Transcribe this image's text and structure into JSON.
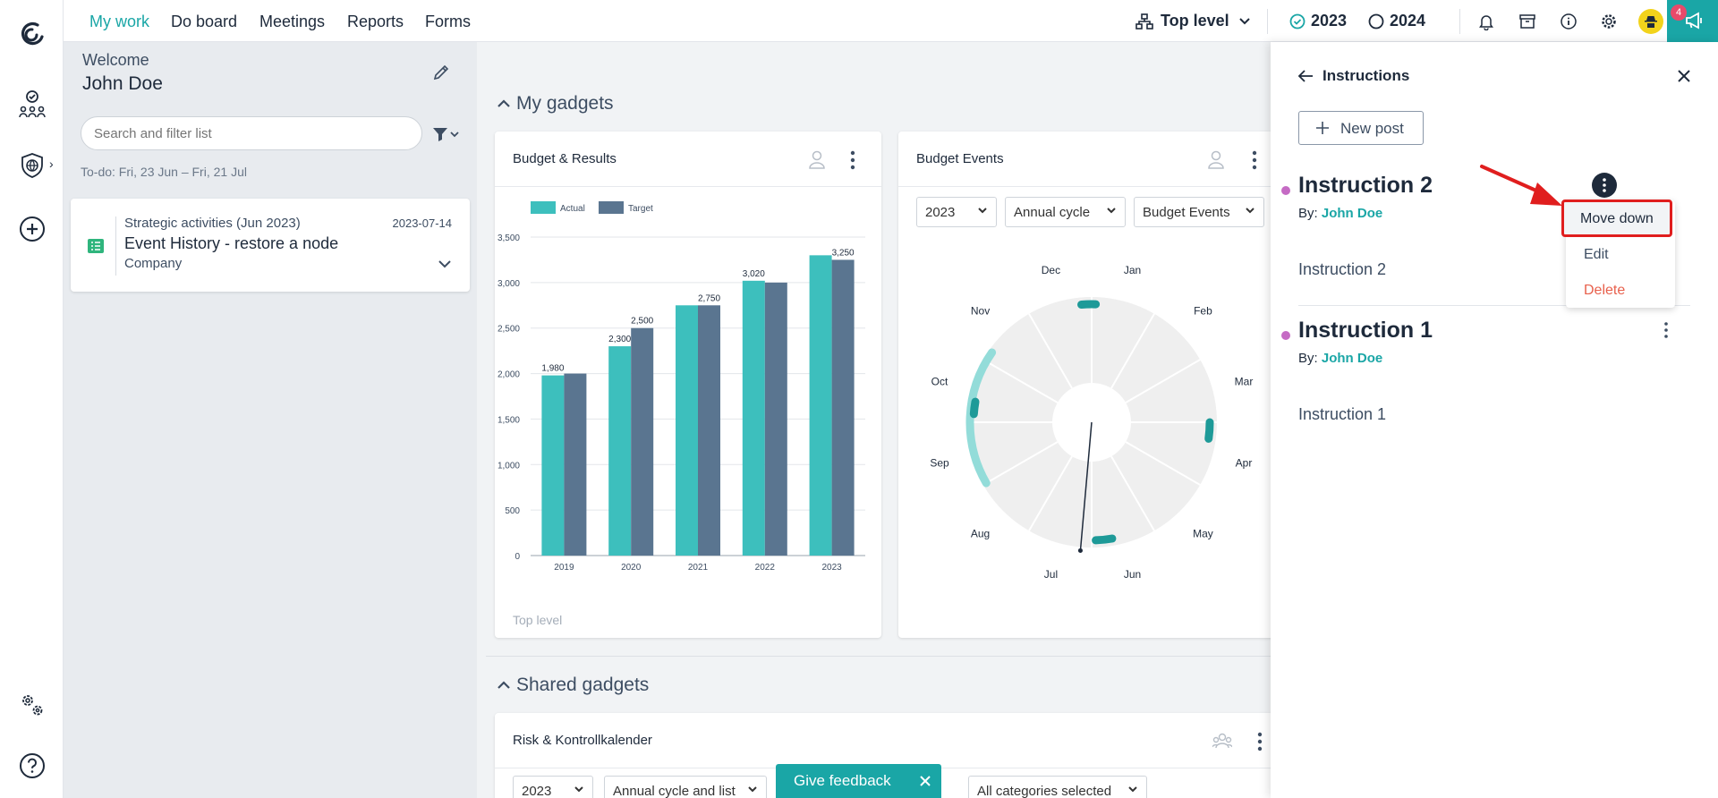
{
  "nav": {
    "items": [
      "My work",
      "Do board",
      "Meetings",
      "Reports",
      "Forms"
    ]
  },
  "topbar": {
    "level": "Top level",
    "year1": "2023",
    "year2": "2024",
    "notif_count": "4"
  },
  "left": {
    "welcome": "Welcome",
    "user_name": "John Doe",
    "search_placeholder": "Search and filter list",
    "todo_range": "To-do: Fri, 23 Jun – Fri, 21 Jul",
    "task": {
      "category": "Strategic activities (Jun 2023)",
      "date": "2023-07-14",
      "title": "Event History - restore a node",
      "org": "Company"
    }
  },
  "gadgets": {
    "my_title": "My gadgets",
    "shared_title": "Shared gadgets"
  },
  "budget_results": {
    "title": "Budget & Results",
    "footer": "Top level"
  },
  "budget_events": {
    "title": "Budget Events",
    "filters": [
      "2023",
      "Annual cycle",
      "Budget Events"
    ],
    "months": [
      "Jan",
      "Feb",
      "Mar",
      "Apr",
      "May",
      "Jun",
      "Jul",
      "Aug",
      "Sep",
      "Oct",
      "Nov",
      "Dec"
    ]
  },
  "risk": {
    "title": "Risk & Kontrollkalender",
    "filters": [
      "2023",
      "Annual cycle and list",
      "All categories selected"
    ]
  },
  "feedback": {
    "label": "Give feedback"
  },
  "panel": {
    "title": "Instructions",
    "new_post": "New post",
    "by_label": "By:",
    "posts": [
      {
        "title": "Instruction 2",
        "author": "John Doe",
        "body": "Instruction 2"
      },
      {
        "title": "Instruction 1",
        "author": "John Doe",
        "body": "Instruction 1"
      }
    ],
    "menu": {
      "move_down": "Move down",
      "edit": "Edit",
      "delete": "Delete"
    }
  },
  "colors": {
    "accent": "#1aa6a6",
    "actual": "#3dbfbd",
    "target": "#5a7590",
    "delete": "#e8604c",
    "highlight": "#e01e1e"
  },
  "chart_data": {
    "type": "bar",
    "categories": [
      "2019",
      "2020",
      "2021",
      "2022",
      "2023"
    ],
    "series": [
      {
        "name": "Actual",
        "values": [
          1980,
          2300,
          2750,
          3020,
          3300
        ]
      },
      {
        "name": "Target",
        "values": [
          2000,
          2500,
          2750,
          3000,
          3250
        ]
      }
    ],
    "data_labels": [
      "1,980",
      "2,300",
      "2,500",
      "2,750",
      "3,020",
      "3,250"
    ],
    "yticks": [
      "0",
      "500",
      "1,000",
      "1,500",
      "2,000",
      "2,500",
      "3,000",
      "3,500"
    ],
    "ylim": [
      0,
      3500
    ],
    "legend": "top-left",
    "grid": true
  }
}
